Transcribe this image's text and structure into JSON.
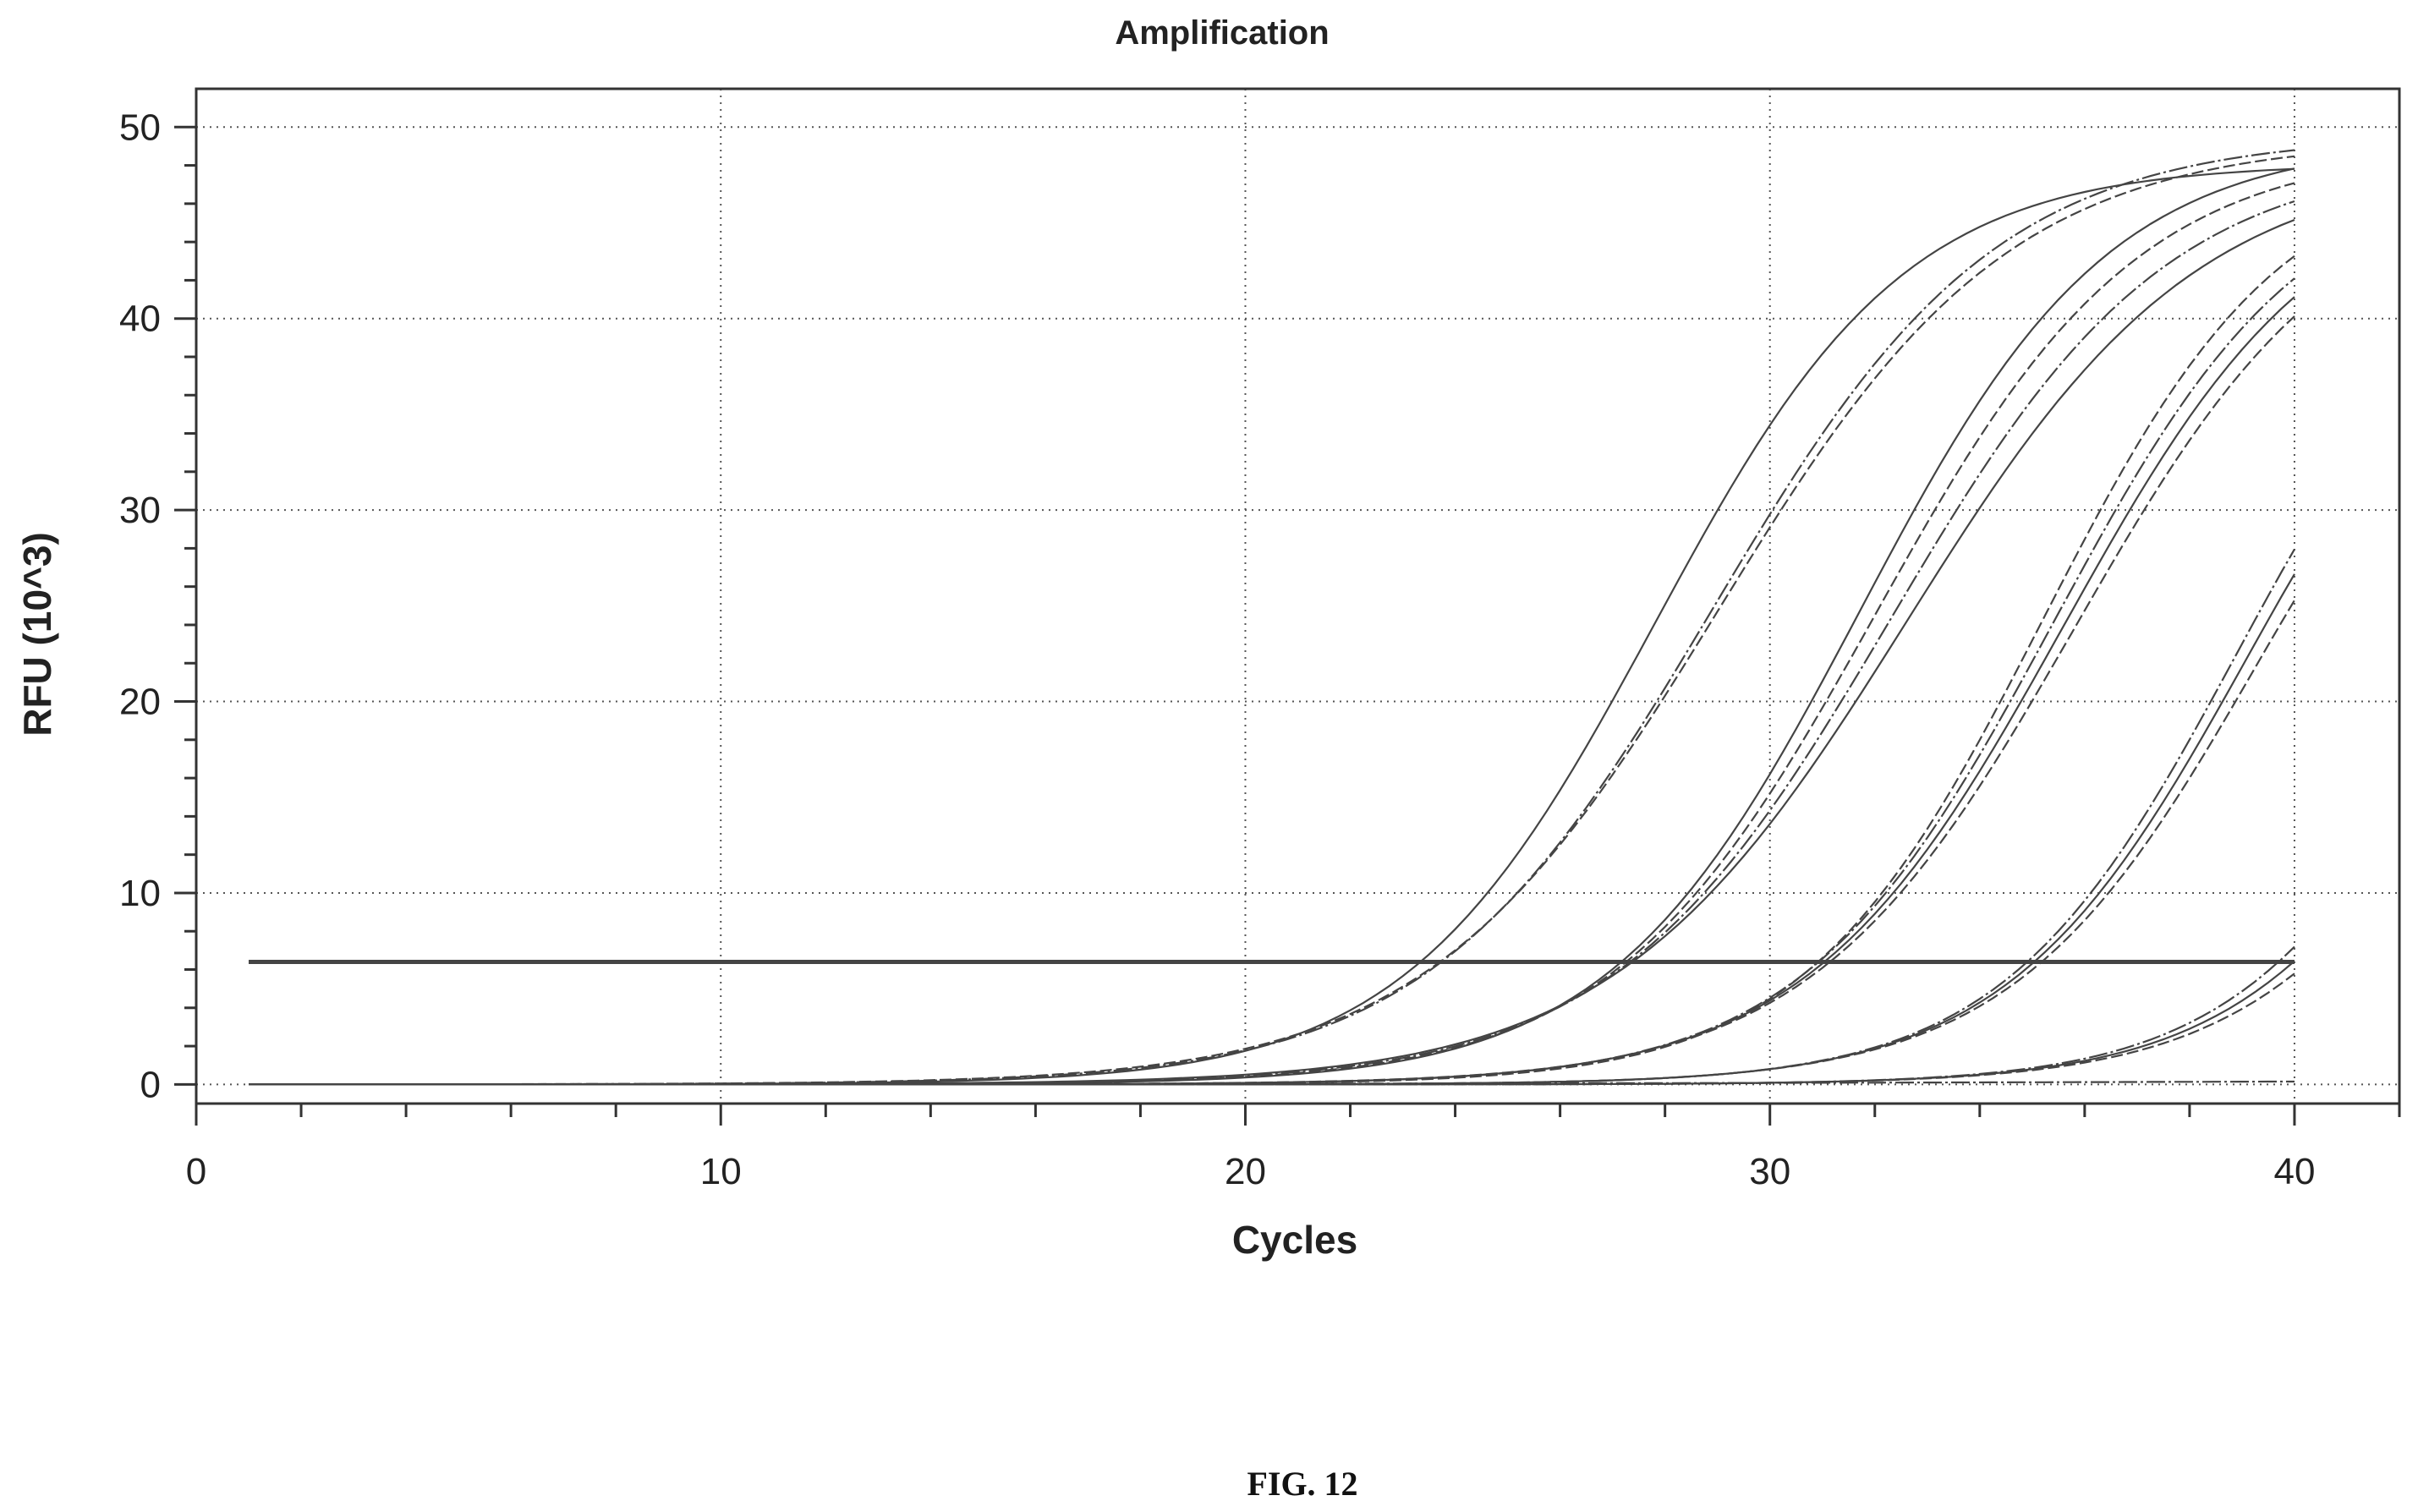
{
  "figure_caption": "FIG. 12",
  "chart_data": {
    "type": "line",
    "title": "Amplification",
    "xlabel": "Cycles",
    "ylabel": "RFU (10^3)",
    "xlim": [
      0,
      42
    ],
    "ylim": [
      -1,
      52
    ],
    "xticks": [
      0,
      10,
      20,
      30,
      40
    ],
    "yticks": [
      0,
      10,
      20,
      30,
      40,
      50
    ],
    "grid": true,
    "threshold": 6.4,
    "series": [
      {
        "group": 1,
        "max": 48.1,
        "mid": 27.8,
        "k": 0.42
      },
      {
        "group": 1,
        "max": 49.4,
        "mid": 29.0,
        "k": 0.36
      },
      {
        "group": 1,
        "max": 49.6,
        "mid": 28.9,
        "k": 0.37
      },
      {
        "group": 2,
        "max": 49.3,
        "mid": 31.7,
        "k": 0.42
      },
      {
        "group": 2,
        "max": 49.0,
        "mid": 32.0,
        "k": 0.4
      },
      {
        "group": 2,
        "max": 48.6,
        "mid": 32.3,
        "k": 0.38
      },
      {
        "group": 2,
        "max": 48.3,
        "mid": 32.6,
        "k": 0.36
      },
      {
        "group": 3,
        "max": 48.5,
        "mid": 35.2,
        "k": 0.44
      },
      {
        "group": 3,
        "max": 48.2,
        "mid": 35.4,
        "k": 0.42
      },
      {
        "group": 3,
        "max": 47.9,
        "mid": 35.6,
        "k": 0.41
      },
      {
        "group": 3,
        "max": 47.6,
        "mid": 35.8,
        "k": 0.4
      },
      {
        "group": 4,
        "max": 45.0,
        "mid": 38.9,
        "k": 0.45
      },
      {
        "group": 4,
        "max": 44.6,
        "mid": 39.1,
        "k": 0.44
      },
      {
        "group": 4,
        "max": 44.0,
        "mid": 39.3,
        "k": 0.43
      },
      {
        "group": 5,
        "max": 40.0,
        "mid": 43.3,
        "k": 0.46
      },
      {
        "group": 5,
        "max": 39.0,
        "mid": 43.6,
        "k": 0.45
      },
      {
        "group": 5,
        "max": 38.0,
        "mid": 43.9,
        "k": 0.44
      },
      {
        "group": 6,
        "max": 0.3,
        "mid": 40.0,
        "k": 0.1
      }
    ]
  }
}
